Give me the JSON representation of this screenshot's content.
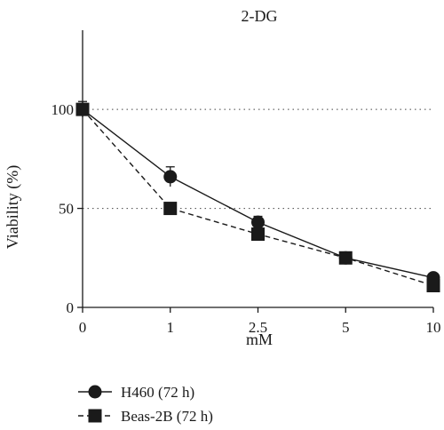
{
  "chart_data": {
    "type": "line",
    "title": "2-DG",
    "xlabel": "mM",
    "ylabel": "Viability (%)",
    "categories": [
      "0",
      "1",
      "2.5",
      "5",
      "10"
    ],
    "yticks": [
      "0",
      "50",
      "100"
    ],
    "ylim": [
      0,
      140
    ],
    "grid": "dotted horizontal at 50 and 100",
    "legend_position": "bottom-left",
    "series": [
      {
        "name": "H460 (72 h)",
        "marker": "circle",
        "line_style": "solid",
        "values": [
          100,
          66,
          43,
          25,
          15
        ],
        "error": [
          4,
          5,
          3,
          2,
          2
        ]
      },
      {
        "name": "Beas-2B (72 h)",
        "marker": "square",
        "line_style": "dashed",
        "values": [
          100,
          50,
          37,
          25,
          11
        ],
        "error": [
          3,
          2,
          2,
          2,
          2
        ]
      }
    ]
  }
}
